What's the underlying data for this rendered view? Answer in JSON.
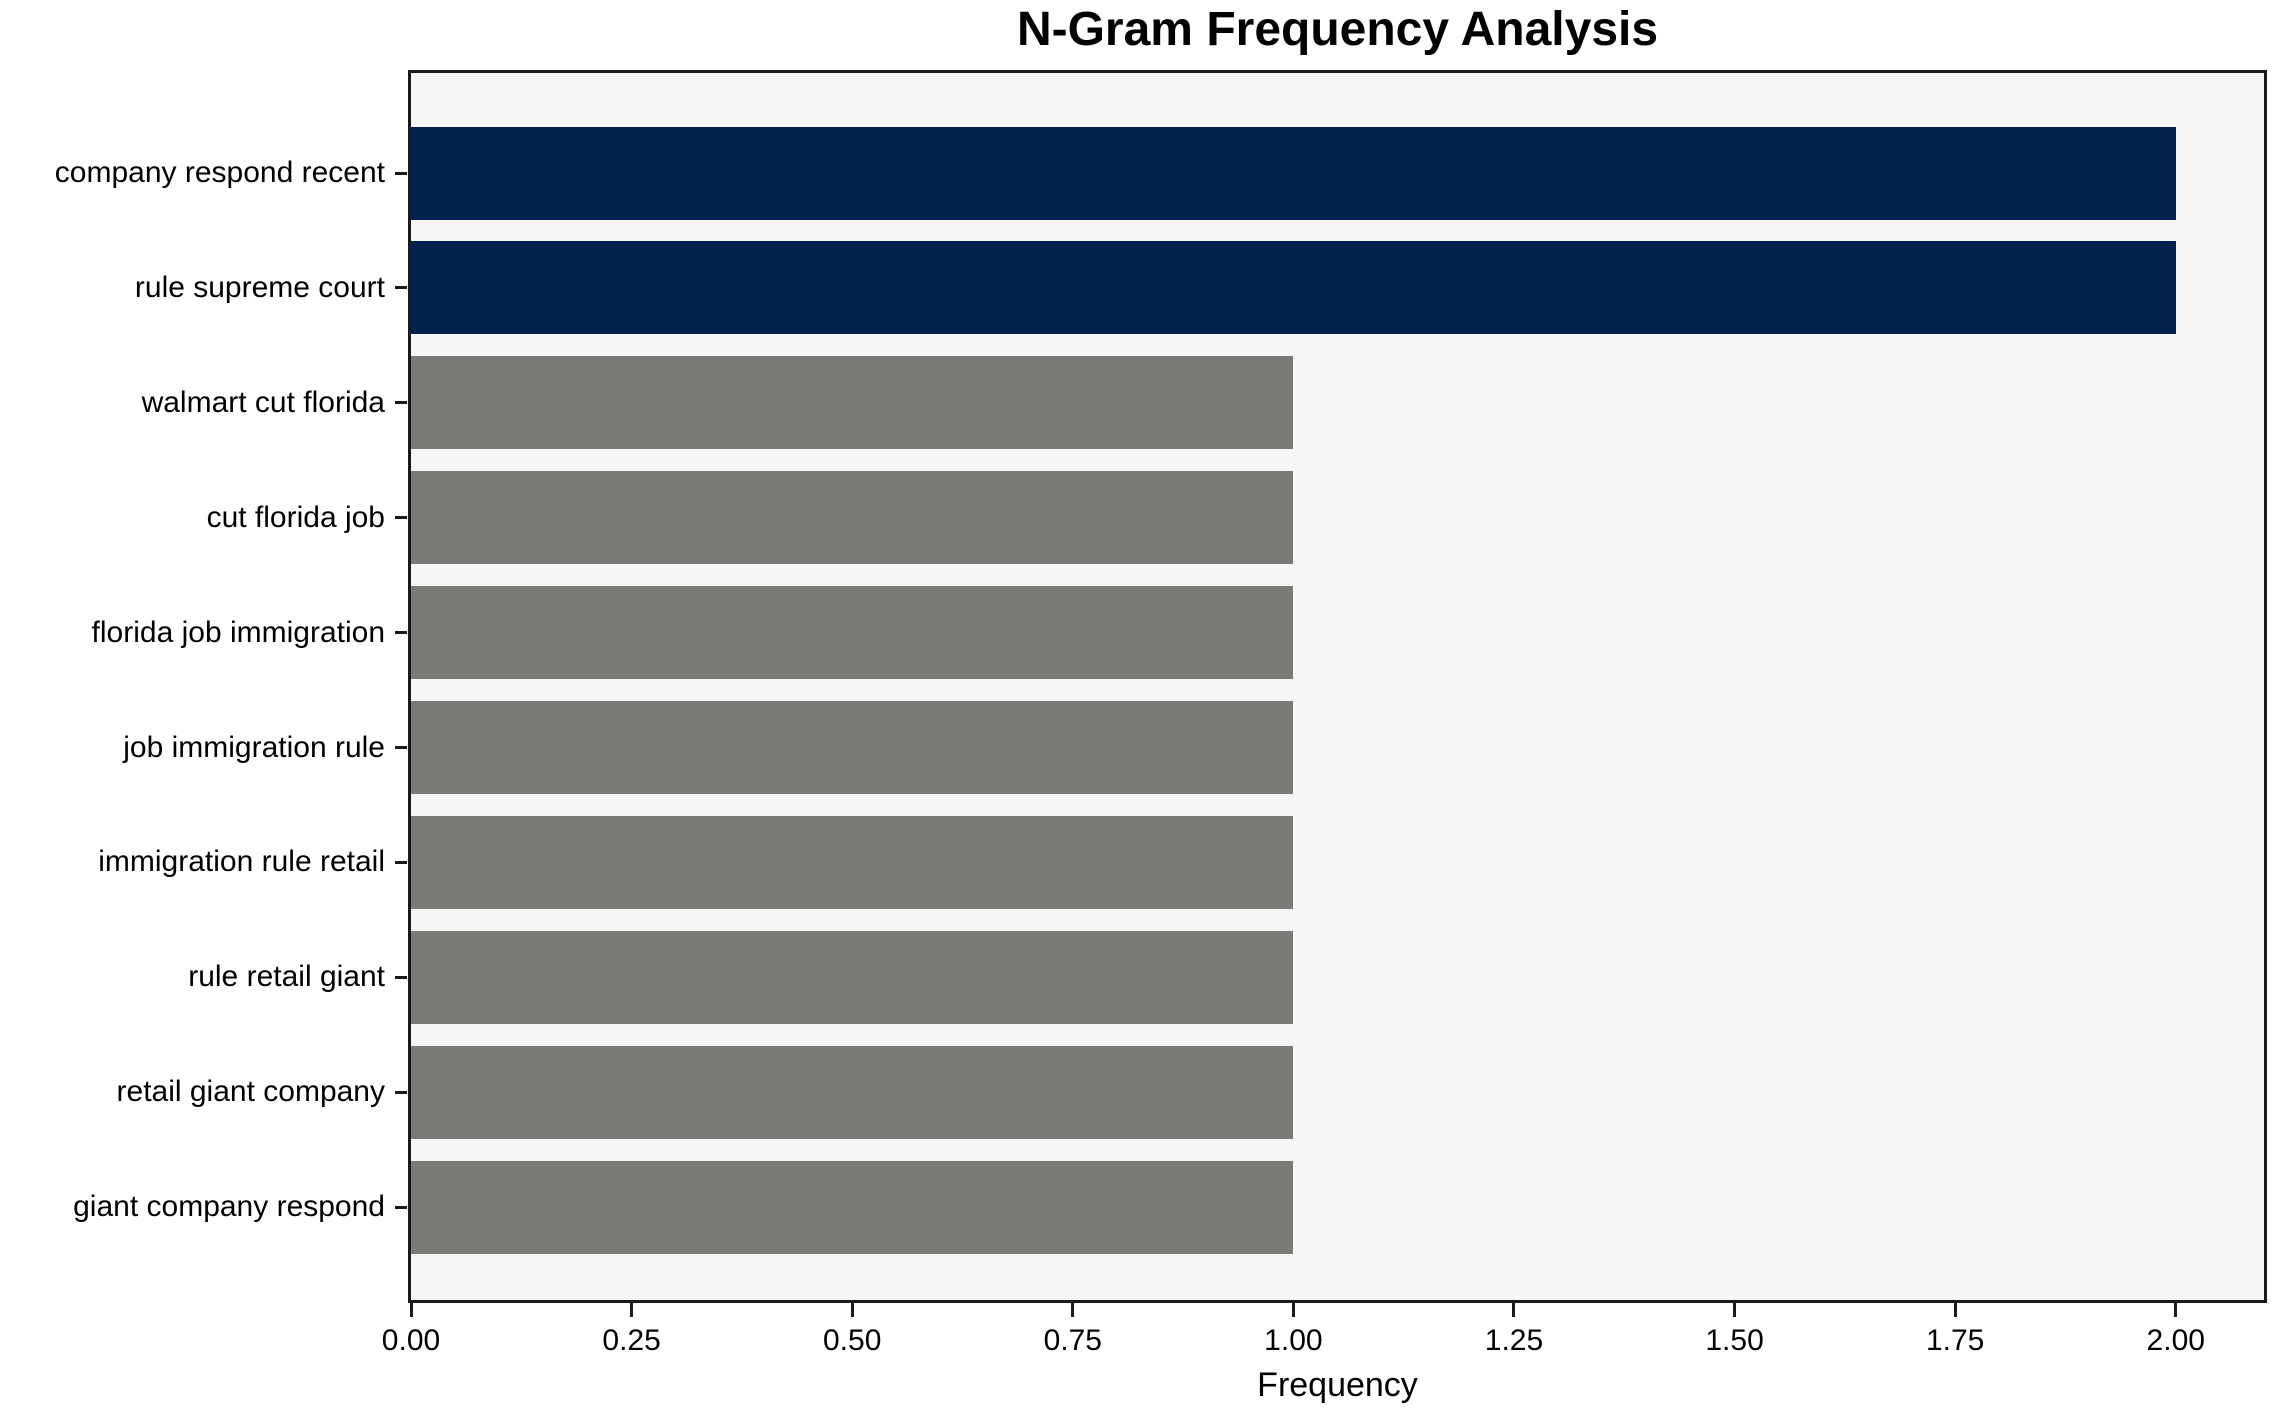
{
  "chart_data": {
    "type": "bar",
    "orientation": "horizontal",
    "title": "N-Gram Frequency Analysis",
    "xlabel": "Frequency",
    "ylabel": "",
    "categories": [
      "company respond recent",
      "rule supreme court",
      "walmart cut florida",
      "cut florida job",
      "florida job immigration",
      "job immigration rule",
      "immigration rule retail",
      "rule retail giant",
      "retail giant company",
      "giant company respond"
    ],
    "values": [
      2,
      2,
      1,
      1,
      1,
      1,
      1,
      1,
      1,
      1
    ],
    "bar_colors": [
      "#02234e",
      "#02234e",
      "#7b7a77",
      "#7b7a77",
      "#7b7a77",
      "#7b7a77",
      "#7b7a77",
      "#7b7a77",
      "#7b7a77",
      "#7b7a77"
    ],
    "xlim": [
      0,
      2.1
    ],
    "xticks": [
      0,
      0.25,
      0.5,
      0.75,
      1.0,
      1.25,
      1.5,
      1.75,
      2.0
    ],
    "xtick_labels": [
      "0.00",
      "0.25",
      "0.50",
      "0.75",
      "1.00",
      "1.25",
      "1.50",
      "1.75",
      "2.00"
    ],
    "grid": false,
    "legend": null,
    "colors": {
      "highlight": "#02234e",
      "default": "#7b7a77",
      "plot_bg": "#f7f6f6",
      "figure_bg": "#ffffff",
      "spine": "#1a1a1a",
      "text": "#000000"
    }
  }
}
